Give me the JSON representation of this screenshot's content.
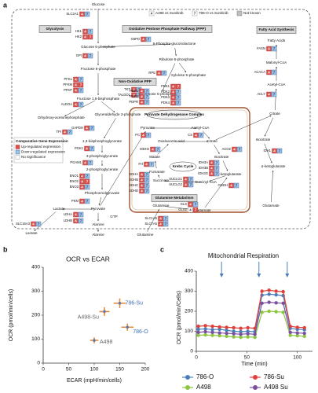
{
  "panel_labels": [
    "a",
    "b",
    "c"
  ],
  "pathway": {
    "legend": {
      "a498_box": "4",
      "a498_label": "A498 vs Sunitinib",
      "o786_box": "7",
      "o786_label": "786-O vs Sunitinib",
      "unknown_label": "Not known"
    },
    "sections": [
      "Glycolysis",
      "Oxidative Pentose Phosphate Pathway (PPP)",
      "Non-Oxidative PPP",
      "Fatty Acid Synthesis",
      "Glutamine Metabolism",
      "Krebs Cycle",
      "Pyruvate Dehydrogenase Complex"
    ],
    "metabolites": [
      "Glucose",
      "Glucose 6-phosphate",
      "6-Phospho-gluconolactone",
      "Ribulose 5-phosphate",
      "Xylulose 5-phosphate",
      "Ribose 5-phosphate",
      "Fructose 6-phosphate",
      "Fructose 1,6-bisphosphate",
      "Dihydroxy-acetonephosphate",
      "Glyceraldehyde 3-phosphate",
      "1,3-bisphosphoglycerate",
      "3-phosphoglycerate",
      "2-phosphoglycerate",
      "Phosphoenolpyruvate",
      "Pyruvate",
      "Lactate",
      "GTP",
      "Alanine",
      "Lactate",
      "Alanine",
      "Glutamine",
      "Pyruvate",
      "Acetyl-CoA",
      "Oxaloacetic acid",
      "Citrate",
      "Isocitrate",
      "Malate",
      "Fumarate",
      "Succinate",
      "Succinyl-CoA",
      "α-ketoglutarate",
      "Glutamine",
      "Glutamate",
      "Fatty Acids",
      "Malonyl-CoA",
      "Acetyl-CoA",
      "Citrate",
      "Isocitrate",
      "α-ketoglutarate",
      "Glutamate"
    ],
    "genes": [
      {
        "name": "SLC2A1",
        "expr": [
          "up",
          "down"
        ]
      },
      {
        "name": "HK1",
        "expr": [
          "up",
          "down"
        ]
      },
      {
        "name": "HK2",
        "expr": [
          "up",
          "up"
        ]
      },
      {
        "name": "G6PD",
        "expr": [
          "up",
          "down"
        ]
      },
      {
        "name": "GPI",
        "expr": [
          "up",
          "down"
        ]
      },
      {
        "name": "RPE",
        "expr": [
          "up",
          "down"
        ]
      },
      {
        "name": "TKT",
        "expr": [
          "up",
          "down"
        ]
      },
      {
        "name": "TALDO1",
        "expr": [
          "up",
          "down"
        ]
      },
      {
        "name": "PFKL",
        "expr": [
          "up",
          "down"
        ]
      },
      {
        "name": "PFKM",
        "expr": [
          "up",
          "up"
        ]
      },
      {
        "name": "PFKP",
        "expr": [
          "up",
          "down"
        ]
      },
      {
        "name": "ALDOA",
        "expr": [
          "up",
          "down"
        ]
      },
      {
        "name": "TPI",
        "expr": [
          "up",
          "down"
        ]
      },
      {
        "name": "GAPDH",
        "expr": [
          "up",
          "down"
        ]
      },
      {
        "name": "PGK1",
        "expr": [
          "up",
          "down"
        ]
      },
      {
        "name": "PGAM1",
        "expr": [
          "up",
          "down"
        ]
      },
      {
        "name": "ENO1",
        "expr": [
          "up",
          "down"
        ]
      },
      {
        "name": "ENO2",
        "expr": [
          "up",
          "up"
        ]
      },
      {
        "name": "ENO3",
        "expr": [
          "up",
          "down"
        ]
      },
      {
        "name": "PKM",
        "expr": [
          "up",
          "down"
        ]
      },
      {
        "name": "LDHA",
        "expr": [
          "up",
          "down"
        ]
      },
      {
        "name": "LDHB",
        "expr": [
          "up",
          "down"
        ]
      },
      {
        "name": "SLC16A3",
        "expr": [
          "up",
          "down"
        ]
      },
      {
        "name": "PDP1",
        "expr": [
          "up",
          "down"
        ]
      },
      {
        "name": "PDP2",
        "expr": [
          "up",
          "down"
        ]
      },
      {
        "name": "PDPR",
        "expr": [
          "up",
          "down"
        ]
      },
      {
        "name": "PDK1",
        "expr": [
          "up",
          "up"
        ]
      },
      {
        "name": "PDK2",
        "expr": [
          "up",
          "down"
        ]
      },
      {
        "name": "PDK3",
        "expr": [
          "up",
          "down"
        ]
      },
      {
        "name": "PDK4",
        "expr": [
          "up",
          "down"
        ]
      },
      {
        "name": "PC",
        "expr": [
          "up",
          "down"
        ]
      },
      {
        "name": "CS",
        "expr": [
          "up",
          "down"
        ]
      },
      {
        "name": "MDH2",
        "expr": [
          "up",
          "down"
        ]
      },
      {
        "name": "ACO2",
        "expr": [
          "up",
          "down"
        ]
      },
      {
        "name": "IDH3A",
        "expr": [
          "up",
          "down"
        ]
      },
      {
        "name": "IDH3B",
        "expr": [
          "up",
          "down"
        ]
      },
      {
        "name": "IDH3G",
        "expr": [
          "up",
          "down"
        ]
      },
      {
        "name": "FH",
        "expr": [
          "up",
          "down"
        ]
      },
      {
        "name": "SDHA",
        "expr": [
          "up",
          "down"
        ]
      },
      {
        "name": "SDHB",
        "expr": [
          "up",
          "down"
        ]
      },
      {
        "name": "SDHC",
        "expr": [
          "up",
          "down"
        ]
      },
      {
        "name": "SDHD",
        "expr": [
          "up",
          "down"
        ]
      },
      {
        "name": "SUCLG1",
        "expr": [
          "up",
          "down"
        ]
      },
      {
        "name": "SUCLG2",
        "expr": [
          "up",
          "down"
        ]
      },
      {
        "name": "OGDH",
        "expr": [
          "up",
          "down"
        ]
      },
      {
        "name": "GLS",
        "expr": [
          "up",
          "down"
        ]
      },
      {
        "name": "GLS2",
        "expr": [
          "ns",
          "up"
        ]
      },
      {
        "name": "SLC1A5",
        "expr": [
          "up",
          "down"
        ]
      },
      {
        "name": "SLC7A5",
        "expr": [
          "up",
          "down"
        ]
      },
      {
        "name": "FASN",
        "expr": [
          "up",
          "down"
        ]
      },
      {
        "name": "ACACA",
        "expr": [
          "up",
          "down"
        ]
      },
      {
        "name": "ACLY",
        "expr": [
          "up",
          "down"
        ]
      },
      {
        "name": "IDH1",
        "expr": [
          "up",
          "down"
        ]
      }
    ],
    "expression_key": {
      "title": "Comparative Gene Expression",
      "up": "Up-regulated expression",
      "down": "Down-regulated expression",
      "ns": "No significance"
    }
  },
  "chart_data": [
    {
      "type": "scatter",
      "title": "OCR vs ECAR",
      "xlabel": "ECAR (mpH/min/cells)",
      "ylabel": "OCR (pmol/min/cells)",
      "labels": [
        "786-Su",
        "A498-Su",
        "786-O",
        "A498"
      ],
      "x": [
        150,
        120,
        165,
        100
      ],
      "y": [
        250,
        215,
        150,
        95
      ],
      "xerr": [
        12,
        10,
        12,
        8
      ],
      "yerr": [
        20,
        18,
        15,
        12
      ],
      "color": "#e8893a",
      "point_color": "#5b7aa8",
      "label_colors": [
        "#3b6cb5",
        "#666666",
        "#3b6cb5",
        "#666666"
      ],
      "xlim": [
        0,
        200
      ],
      "xticks": [
        0,
        50,
        100,
        150,
        200
      ],
      "ylim": [
        0,
        400
      ],
      "yticks": [
        0,
        100,
        200,
        300,
        400
      ]
    },
    {
      "type": "line",
      "title": "Mitochondrial Respiration",
      "xlabel": "Time (min)",
      "ylabel": "OCR (pmol/min/Cells)",
      "x": [
        2,
        9,
        16,
        23,
        30,
        37,
        44,
        51,
        58,
        65,
        72,
        79,
        86,
        93,
        100,
        107
      ],
      "xlim": [
        0,
        115
      ],
      "xticks": [
        0,
        50,
        100
      ],
      "ylim": [
        0,
        400
      ],
      "yticks": [
        0,
        100,
        200,
        300,
        400
      ],
      "injections": [
        25,
        62,
        90
      ],
      "arrow_color": "#4a7ebb",
      "legend": "bottom",
      "series": [
        {
          "name": "786-O",
          "color": "#4a7ebb",
          "values": [
            110,
            112,
            108,
            110,
            105,
            100,
            98,
            100,
            98,
            280,
            285,
            282,
            278,
            115,
            110,
            108
          ]
        },
        {
          "name": "786-Su",
          "color": "#e0403a",
          "values": [
            125,
            128,
            125,
            122,
            120,
            118,
            115,
            118,
            115,
            300,
            305,
            300,
            298,
            125,
            120,
            118
          ]
        },
        {
          "name": "A498",
          "color": "#8cc63f",
          "values": [
            80,
            82,
            80,
            78,
            75,
            72,
            70,
            72,
            70,
            195,
            200,
            198,
            195,
            80,
            78,
            75
          ]
        },
        {
          "name": "A498 Su",
          "color": "#7b4fa0",
          "values": [
            95,
            98,
            95,
            92,
            90,
            88,
            85,
            88,
            85,
            240,
            245,
            242,
            240,
            95,
            92,
            90
          ]
        }
      ]
    }
  ]
}
